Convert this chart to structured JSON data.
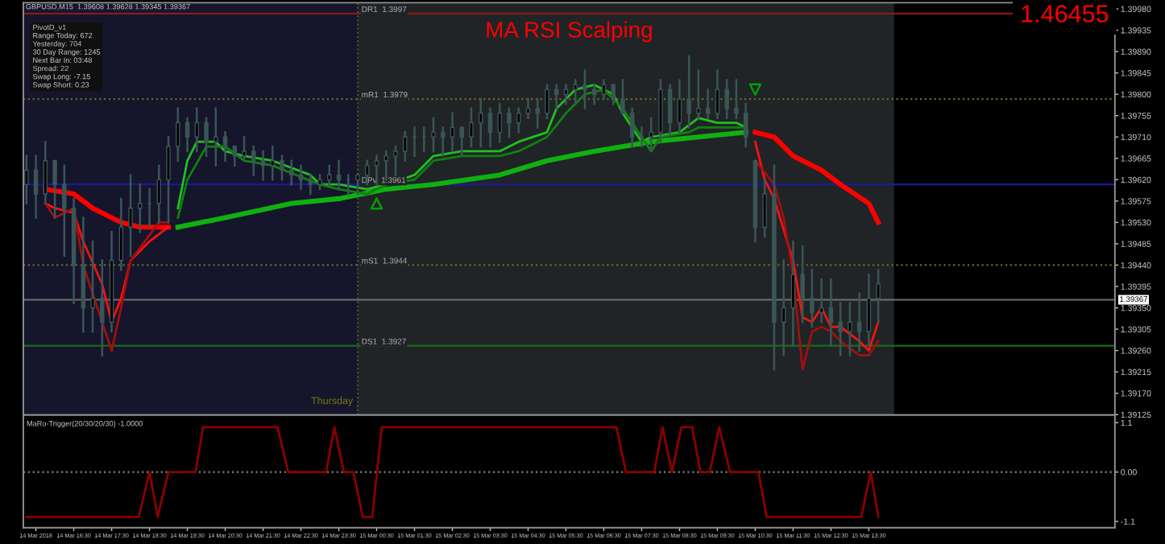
{
  "chart_data": [
    {
      "type": "candlestick",
      "title": "MA RSI Scalping",
      "annotations": [
        "1.46455",
        "GBPUSD,M15  1.39608 1.39628 1.39345 1.39367",
        "PivotD_v1\nRange Today: 672\nYesterday: 704\n30 Day Range: 1245\nNext Bar In: 03:48\nSpread: 22\nSwap Long: -7.15\nSwap Short: 0.23",
        "Thursday"
      ],
      "x": [
        "2018-03-14T15:15",
        "2018-03-14T15:30",
        "2018-03-14T15:45",
        "2018-03-14T16:00",
        "2018-03-14T16:15",
        "2018-03-14T16:30",
        "2018-03-14T16:45",
        "2018-03-14T17:00",
        "2018-03-14T17:15",
        "2018-03-14T17:30",
        "2018-03-14T17:45",
        "2018-03-14T18:00",
        "2018-03-14T18:15",
        "2018-03-14T18:30",
        "2018-03-14T18:45",
        "2018-03-14T19:00",
        "2018-03-14T19:15",
        "2018-03-14T19:30",
        "2018-03-14T19:45",
        "2018-03-14T20:00",
        "2018-03-14T20:15",
        "2018-03-14T20:30",
        "2018-03-14T20:45",
        "2018-03-14T21:00",
        "2018-03-14T21:15",
        "2018-03-14T21:30",
        "2018-03-14T21:45",
        "2018-03-14T22:00",
        "2018-03-14T22:15",
        "2018-03-14T22:30",
        "2018-03-14T22:45",
        "2018-03-14T23:00",
        "2018-03-14T23:15",
        "2018-03-14T23:30",
        "2018-03-14T23:45",
        "2018-03-15T00:00",
        "2018-03-15T00:15",
        "2018-03-15T00:30",
        "2018-03-15T00:45",
        "2018-03-15T01:00",
        "2018-03-15T01:15",
        "2018-03-15T01:30",
        "2018-03-15T01:45",
        "2018-03-15T02:00",
        "2018-03-15T02:15",
        "2018-03-15T02:30",
        "2018-03-15T02:45",
        "2018-03-15T03:00",
        "2018-03-15T03:15",
        "2018-03-15T03:30",
        "2018-03-15T03:45",
        "2018-03-15T04:00",
        "2018-03-15T04:15",
        "2018-03-15T04:30",
        "2018-03-15T04:45",
        "2018-03-15T05:00",
        "2018-03-15T05:15",
        "2018-03-15T05:30",
        "2018-03-15T05:45",
        "2018-03-15T06:00",
        "2018-03-15T06:15",
        "2018-03-15T06:30",
        "2018-03-15T06:45",
        "2018-03-15T07:00",
        "2018-03-15T07:15",
        "2018-03-15T07:30",
        "2018-03-15T07:45",
        "2018-03-15T08:00",
        "2018-03-15T08:15",
        "2018-03-15T08:30",
        "2018-03-15T08:45",
        "2018-03-15T09:00",
        "2018-03-15T09:15",
        "2018-03-15T09:30",
        "2018-03-15T09:45",
        "2018-03-15T10:00",
        "2018-03-15T10:15",
        "2018-03-15T10:30",
        "2018-03-15T10:45",
        "2018-03-15T11:00",
        "2018-03-15T11:15",
        "2018-03-15T11:30",
        "2018-03-15T11:45",
        "2018-03-15T12:00",
        "2018-03-15T12:15",
        "2018-03-15T12:30",
        "2018-03-15T12:45",
        "2018-03-15T13:00",
        "2018-03-15T13:15",
        "2018-03-15T13:30",
        "2018-03-15T13:45"
      ],
      "ohlc": [
        [
          1.3961,
          1.3967,
          1.3957,
          1.3964
        ],
        [
          1.3964,
          1.3967,
          1.3954,
          1.3959
        ],
        [
          1.3959,
          1.397,
          1.3957,
          1.3966
        ],
        [
          1.3966,
          1.3966,
          1.3954,
          1.3961
        ],
        [
          1.3961,
          1.3965,
          1.3946,
          1.3956
        ],
        [
          1.3956,
          1.3958,
          1.3936,
          1.3944
        ],
        [
          1.3944,
          1.3954,
          1.393,
          1.3935
        ],
        [
          1.3935,
          1.3949,
          1.393,
          1.3937
        ],
        [
          1.3937,
          1.3945,
          1.3925,
          1.3932
        ],
        [
          1.3932,
          1.3951,
          1.393,
          1.3945
        ],
        [
          1.3945,
          1.3958,
          1.3943,
          1.3952
        ],
        [
          1.3952,
          1.3963,
          1.3946,
          1.3956
        ],
        [
          1.3956,
          1.3961,
          1.3951,
          1.3957
        ],
        [
          1.3957,
          1.396,
          1.3952,
          1.3957
        ],
        [
          1.3957,
          1.3965,
          1.3953,
          1.3962
        ],
        [
          1.3962,
          1.3971,
          1.3953,
          1.3969
        ],
        [
          1.3969,
          1.3977,
          1.3966,
          1.3974
        ],
        [
          1.3974,
          1.3975,
          1.3968,
          1.3971
        ],
        [
          1.3971,
          1.3977,
          1.3968,
          1.3974
        ],
        [
          1.3974,
          1.3975,
          1.3967,
          1.397
        ],
        [
          1.397,
          1.3977,
          1.3965,
          1.3971
        ],
        [
          1.3971,
          1.3972,
          1.3966,
          1.3969
        ],
        [
          1.3969,
          1.3969,
          1.3965,
          1.3967
        ],
        [
          1.3967,
          1.3971,
          1.3966,
          1.3968
        ],
        [
          1.3968,
          1.3969,
          1.3963,
          1.3966
        ],
        [
          1.3966,
          1.3968,
          1.3962,
          1.3965
        ],
        [
          1.3965,
          1.3969,
          1.3962,
          1.3966
        ],
        [
          1.3966,
          1.3967,
          1.3962,
          1.3964
        ],
        [
          1.3964,
          1.3966,
          1.3961,
          1.3963
        ],
        [
          1.3963,
          1.3965,
          1.396,
          1.3962
        ],
        [
          1.3962,
          1.3963,
          1.3959,
          1.3961
        ],
        [
          1.3961,
          1.3963,
          1.396,
          1.3962
        ],
        [
          1.3962,
          1.3965,
          1.3961,
          1.3963
        ],
        [
          1.3963,
          1.3966,
          1.396,
          1.3962
        ],
        [
          1.3962,
          1.3963,
          1.3959,
          1.3962
        ],
        [
          1.3962,
          1.3963,
          1.3959,
          1.3963
        ],
        [
          1.3963,
          1.3966,
          1.3961,
          1.3965
        ],
        [
          1.3965,
          1.3967,
          1.3961,
          1.3966
        ],
        [
          1.3966,
          1.3968,
          1.3962,
          1.3967
        ],
        [
          1.3967,
          1.3969,
          1.3963,
          1.3968
        ],
        [
          1.3968,
          1.3972,
          1.3966,
          1.3971
        ],
        [
          1.3971,
          1.3973,
          1.3967,
          1.3971
        ],
        [
          1.3971,
          1.3973,
          1.3968,
          1.3971
        ],
        [
          1.3971,
          1.3975,
          1.3968,
          1.3972
        ],
        [
          1.3972,
          1.3973,
          1.3967,
          1.3971
        ],
        [
          1.3971,
          1.3976,
          1.3968,
          1.3973
        ],
        [
          1.3973,
          1.3973,
          1.3967,
          1.3971
        ],
        [
          1.3971,
          1.3977,
          1.3969,
          1.3974
        ],
        [
          1.3974,
          1.3979,
          1.3969,
          1.3976
        ],
        [
          1.3976,
          1.3977,
          1.3969,
          1.3972
        ],
        [
          1.3972,
          1.3978,
          1.397,
          1.3976
        ],
        [
          1.3976,
          1.3977,
          1.3971,
          1.3974
        ],
        [
          1.3974,
          1.3977,
          1.3972,
          1.3976
        ],
        [
          1.3976,
          1.3979,
          1.3975,
          1.3977
        ],
        [
          1.3977,
          1.3979,
          1.3973,
          1.3976
        ],
        [
          1.3976,
          1.3982,
          1.3975,
          1.3981
        ],
        [
          1.3981,
          1.3982,
          1.3977,
          1.398
        ],
        [
          1.398,
          1.3982,
          1.3978,
          1.3981
        ],
        [
          1.3981,
          1.3983,
          1.3978,
          1.3982
        ],
        [
          1.3982,
          1.3985,
          1.3977,
          1.3981
        ],
        [
          1.3981,
          1.3982,
          1.3978,
          1.398
        ],
        [
          1.398,
          1.3983,
          1.3979,
          1.3982
        ],
        [
          1.3982,
          1.3982,
          1.3978,
          1.3979
        ],
        [
          1.3979,
          1.3983,
          1.3976,
          1.3976
        ],
        [
          1.3976,
          1.3977,
          1.3969,
          1.3971
        ],
        [
          1.3971,
          1.3973,
          1.3969,
          1.3971
        ],
        [
          1.3971,
          1.3975,
          1.3968,
          1.3972
        ],
        [
          1.3972,
          1.3983,
          1.397,
          1.3981
        ],
        [
          1.3981,
          1.3982,
          1.3971,
          1.3974
        ],
        [
          1.3974,
          1.3983,
          1.3972,
          1.3979
        ],
        [
          1.3979,
          1.3988,
          1.3973,
          1.3976
        ],
        [
          1.3976,
          1.3985,
          1.3975,
          1.3977
        ],
        [
          1.3977,
          1.3981,
          1.3975,
          1.3976
        ],
        [
          1.3976,
          1.3985,
          1.3975,
          1.3981
        ],
        [
          1.3981,
          1.3983,
          1.3975,
          1.3977
        ],
        [
          1.3977,
          1.3983,
          1.3975,
          1.3976
        ],
        [
          1.3976,
          1.3978,
          1.3969,
          1.3971
        ],
        [
          1.3966,
          1.3966,
          1.3949,
          1.3952
        ],
        [
          1.3952,
          1.3962,
          1.395,
          1.3959
        ],
        [
          1.3959,
          1.3965,
          1.3922,
          1.3932
        ],
        [
          1.3932,
          1.3945,
          1.3925,
          1.3935
        ],
        [
          1.3935,
          1.3949,
          1.3927,
          1.3942
        ],
        [
          1.3942,
          1.3948,
          1.3932,
          1.3937
        ],
        [
          1.3937,
          1.3943,
          1.3931,
          1.3934
        ],
        [
          1.3934,
          1.3941,
          1.3932,
          1.3935
        ],
        [
          1.3935,
          1.3941,
          1.3927,
          1.3932
        ],
        [
          1.3932,
          1.3936,
          1.3925,
          1.393
        ],
        [
          1.393,
          1.3936,
          1.3925,
          1.3932
        ],
        [
          1.3932,
          1.3938,
          1.3926,
          1.393
        ],
        [
          1.393,
          1.3942,
          1.3927,
          1.3937
        ],
        [
          1.3937,
          1.3943,
          1.3932,
          1.394
        ]
      ],
      "color": "#3a5656",
      "series": [
        {
          "type": "line",
          "color": "#ff0000",
          "x": [
            "2018-03-14T15:45",
            "2018-03-14T16:30",
            "2018-03-14T17:00",
            "2018-03-14T17:45",
            "2018-03-14T18:15",
            "2018-03-14T19:00"
          ],
          "values": [
            1.396,
            1.3959,
            1.3956,
            1.3953,
            1.3952,
            1.3952
          ]
        },
        {
          "type": "line",
          "color": "#ff1010",
          "x": [
            "2018-03-14T15:45",
            "2018-03-14T16:00",
            "2018-03-14T16:30",
            "2018-03-14T16:45",
            "2018-03-14T17:15",
            "2018-03-14T17:30",
            "2018-03-14T17:45",
            "2018-03-14T18:00",
            "2018-03-14T18:30",
            "2018-03-14T19:00"
          ],
          "values": [
            1.3957,
            1.3956,
            1.3955,
            1.3949,
            1.394,
            1.3932,
            1.3937,
            1.3945,
            1.3949,
            1.3952
          ]
        },
        {
          "type": "line",
          "color": "#a01010",
          "x": [
            "2018-03-14T15:45",
            "2018-03-14T16:00",
            "2018-03-14T16:30",
            "2018-03-14T16:45",
            "2018-03-14T17:15",
            "2018-03-14T17:30",
            "2018-03-14T17:45",
            "2018-03-14T18:00",
            "2018-03-14T18:45",
            "2018-03-14T19:00"
          ],
          "values": [
            1.3957,
            1.3954,
            1.3956,
            1.3944,
            1.3932,
            1.3926,
            1.3935,
            1.3945,
            1.3953,
            1.3953
          ]
        },
        {
          "type": "line",
          "color": "#10b010",
          "x": [
            "2018-03-14T19:15",
            "2018-03-14T20:30",
            "2018-03-14T22:15",
            "2018-03-14T23:30",
            "2018-03-15T00:45",
            "2018-03-15T02:00",
            "2018-03-15T03:45",
            "2018-03-15T05:00",
            "2018-03-15T06:15",
            "2018-03-15T07:45",
            "2018-03-15T09:00",
            "2018-03-15T10:15"
          ],
          "values": [
            1.3952,
            1.3954,
            1.3957,
            1.3958,
            1.396,
            1.3961,
            1.3963,
            1.3966,
            1.3968,
            1.397,
            1.3971,
            1.3972
          ]
        },
        {
          "type": "line",
          "color": "#20c020",
          "x": [
            "2018-03-14T19:15",
            "2018-03-14T19:30",
            "2018-03-14T19:45",
            "2018-03-14T20:15",
            "2018-03-14T20:30",
            "2018-03-14T21:00",
            "2018-03-14T21:45",
            "2018-03-14T22:45",
            "2018-03-14T23:00",
            "2018-03-14T23:30",
            "2018-03-15T00:15",
            "2018-03-15T00:45",
            "2018-03-15T01:30",
            "2018-03-15T02:00",
            "2018-03-15T02:45",
            "2018-03-15T03:45",
            "2018-03-15T04:15",
            "2018-03-15T05:00",
            "2018-03-15T05:15",
            "2018-03-15T05:45",
            "2018-03-15T06:15",
            "2018-03-15T06:45",
            "2018-03-15T07:00",
            "2018-03-15T07:30",
            "2018-03-15T07:45",
            "2018-03-15T08:30",
            "2018-03-15T09:00",
            "2018-03-15T09:30",
            "2018-03-15T10:00",
            "2018-03-15T10:15"
          ],
          "values": [
            1.3956,
            1.3966,
            1.397,
            1.397,
            1.3968,
            1.3967,
            1.3966,
            1.3963,
            1.3961,
            1.3961,
            1.396,
            1.3961,
            1.3963,
            1.3967,
            1.3968,
            1.3968,
            1.397,
            1.3972,
            1.3977,
            1.3981,
            1.3982,
            1.398,
            1.3976,
            1.397,
            1.3971,
            1.3972,
            1.3975,
            1.3974,
            1.3974,
            1.3973
          ]
        },
        {
          "type": "line",
          "color": "#108010",
          "x": [
            "2018-03-14T19:15",
            "2018-03-14T19:30",
            "2018-03-14T20:00",
            "2018-03-14T20:30",
            "2018-03-14T21:00",
            "2018-03-14T21:45",
            "2018-03-14T23:00",
            "2018-03-14T23:30",
            "2018-03-15T00:15",
            "2018-03-15T00:45",
            "2018-03-15T01:30",
            "2018-03-15T02:00",
            "2018-03-15T02:45",
            "2018-03-15T03:45",
            "2018-03-15T04:15",
            "2018-03-15T05:00",
            "2018-03-15T05:30",
            "2018-03-15T06:00",
            "2018-03-15T06:30",
            "2018-03-15T07:00",
            "2018-03-15T07:45",
            "2018-03-15T08:00",
            "2018-03-15T08:45",
            "2018-03-15T09:00",
            "2018-03-15T09:45",
            "2018-03-15T10:15"
          ],
          "values": [
            1.3954,
            1.3962,
            1.3969,
            1.3969,
            1.3966,
            1.3965,
            1.3961,
            1.396,
            1.3959,
            1.3961,
            1.3962,
            1.3966,
            1.3967,
            1.3967,
            1.3968,
            1.3971,
            1.3976,
            1.398,
            1.3981,
            1.3977,
            1.3968,
            1.3971,
            1.3972,
            1.3973,
            1.3973,
            1.3973
          ]
        },
        {
          "type": "line",
          "color": "#ff0000",
          "x": [
            "2018-03-15T10:30",
            "2018-03-15T11:00",
            "2018-03-15T11:30",
            "2018-03-15T12:15",
            "2018-03-15T12:45",
            "2018-03-15T13:30",
            "2018-03-15T13:45"
          ],
          "values": [
            1.3972,
            1.3971,
            1.3967,
            1.3964,
            1.3961,
            1.3957,
            1.3953
          ]
        },
        {
          "type": "line",
          "color": "#ff1010",
          "x": [
            "2018-03-15T10:30",
            "2018-03-15T10:45",
            "2018-03-15T11:00",
            "2018-03-15T11:30",
            "2018-03-15T11:45",
            "2018-03-15T12:00",
            "2018-03-15T12:15",
            "2018-03-15T12:30",
            "2018-03-15T12:45",
            "2018-03-15T13:15",
            "2018-03-15T13:30",
            "2018-03-15T13:45"
          ],
          "values": [
            1.397,
            1.3962,
            1.3958,
            1.3945,
            1.3933,
            1.3932,
            1.3935,
            1.3931,
            1.3931,
            1.3928,
            1.3926,
            1.3932
          ]
        },
        {
          "type": "line",
          "color": "#a01010",
          "x": [
            "2018-03-15T10:30",
            "2018-03-15T11:00",
            "2018-03-15T11:15",
            "2018-03-15T11:30",
            "2018-03-15T11:45",
            "2018-03-15T12:00",
            "2018-03-15T12:15",
            "2018-03-15T12:30",
            "2018-03-15T12:45",
            "2018-03-15T13:15",
            "2018-03-15T13:30",
            "2018-03-15T13:45"
          ],
          "values": [
            1.3966,
            1.3961,
            1.3954,
            1.3942,
            1.3922,
            1.393,
            1.3931,
            1.393,
            1.3928,
            1.3925,
            1.3925,
            1.3928
          ]
        },
        {
          "type": "scatter",
          "marker": "triangle",
          "color": "#00a000",
          "x": [
            "2018-03-15T00:30"
          ],
          "values": [
            1.3957
          ]
        },
        {
          "type": "scatter",
          "marker": "triangle_down",
          "color": "#00a000",
          "x": [
            "2018-03-15T10:30"
          ],
          "values": [
            1.3981
          ]
        }
      ],
      "ref_lines": [
        {
          "axis": "y",
          "value": 1.3997,
          "label": "DR1  1.3997",
          "color": "#8b1a1a",
          "line_style": "solid"
        },
        {
          "axis": "y",
          "value": 1.3979,
          "label": "mR1  1.3979",
          "color": "#6b6b20",
          "line_style": "dotted"
        },
        {
          "axis": "y",
          "value": 1.3961,
          "label": "DPv  1.3961",
          "color": "#1a1a9a",
          "line_style": "solid"
        },
        {
          "axis": "y",
          "value": 1.3944,
          "label": "mS1  1.3944",
          "color": "#6b6b20",
          "line_style": "dotted"
        },
        {
          "axis": "y",
          "value": 1.3927,
          "label": "DS1  1.3927",
          "color": "#1a6b1a",
          "line_style": "solid"
        },
        {
          "axis": "y",
          "value": 1.39367,
          "label": "1.39367",
          "color": "#707070",
          "line_style": "solid"
        },
        {
          "axis": "x",
          "value": "2018-03-15T00:00",
          "color": "#5a5a20",
          "line_style": "dotted"
        }
      ],
      "bands": [
        {
          "axis": "x",
          "from": "2018-03-14T15:10",
          "to": "2018-03-15T00:00",
          "color": "#15152c"
        },
        {
          "axis": "x",
          "from": "2018-03-15T00:00",
          "to": "2018-03-15T14:10",
          "color": "#202426"
        }
      ],
      "xlim": [
        "2018-03-14T15:10",
        "2018-03-15T20:00"
      ],
      "ylim": [
        1.39124,
        1.39993
      ],
      "yticks": [
        {
          "value": 1.3998,
          "label": "1.39980"
        },
        1.39935,
        {
          "value": 1.3989,
          "label": "1.39890"
        },
        1.39845,
        {
          "value": 1.398,
          "label": "1.39800"
        },
        1.39755,
        {
          "value": 1.3971,
          "label": "1.39710"
        },
        1.39665,
        {
          "value": 1.3962,
          "label": "1.39620"
        },
        1.39575,
        {
          "value": 1.3953,
          "label": "1.39530"
        },
        1.39485,
        {
          "value": 1.3944,
          "label": "1.39440"
        },
        1.39395,
        {
          "value": 1.3935,
          "label": "1.39350"
        },
        1.39305,
        {
          "value": 1.3926,
          "label": "1.39260"
        },
        1.39215,
        {
          "value": 1.3917,
          "label": "1.39170"
        },
        1.39125
      ],
      "tick_labels": "y",
      "grid": false,
      "legend": false
    },
    {
      "type": "line",
      "title": "MaRo-Trigger(20/30/20/30) -1.0000",
      "series": [
        {
          "color": "#8b0000",
          "x": [
            "2018-03-14T15:15",
            "2018-03-14T18:13",
            "2018-03-14T18:30",
            "2018-03-14T18:43",
            "2018-03-14T19:00",
            "2018-03-14T19:43",
            "2018-03-14T19:55",
            "2018-03-14T21:53",
            "2018-03-14T22:10",
            "2018-03-14T23:10",
            "2018-03-14T23:23",
            "2018-03-14T23:38",
            "2018-03-14T23:53",
            "2018-03-15T00:08",
            "2018-03-15T00:23",
            "2018-03-15T00:38",
            "2018-03-15T06:50",
            "2018-03-15T07:05",
            "2018-03-15T07:50",
            "2018-03-15T08:03",
            "2018-03-15T08:18",
            "2018-03-15T08:33",
            "2018-03-15T08:50",
            "2018-03-15T09:03",
            "2018-03-15T09:18",
            "2018-03-15T09:33",
            "2018-03-15T09:50",
            "2018-03-15T10:35",
            "2018-03-15T10:48",
            "2018-03-15T13:18",
            "2018-03-15T13:33",
            "2018-03-15T13:45"
          ],
          "values": [
            -1,
            -1,
            0,
            -1,
            0,
            0,
            1,
            1,
            0,
            0,
            1,
            0,
            0,
            -1,
            -1,
            1,
            1,
            0,
            0,
            1,
            0,
            1,
            1,
            0,
            0,
            1,
            0,
            0,
            -1,
            -1,
            0,
            -1
          ]
        }
      ],
      "ref_lines": [
        {
          "axis": "y",
          "value": 0,
          "color": "#808080",
          "line_style": "dotted"
        }
      ],
      "xlim": [
        "2018-03-14T15:10",
        "2018-03-15T20:00"
      ],
      "ylim": [
        -1.24,
        1.27
      ],
      "xticks": [
        {
          "value": "2018-03-14T15:30",
          "label": "14 Mar 2018"
        },
        {
          "value": "2018-03-14T16:30",
          "label": "14 Mar 16:30"
        },
        {
          "value": "2018-03-14T17:30",
          "label": "14 Mar 17:30"
        },
        {
          "value": "2018-03-14T18:30",
          "label": "14 Mar 18:30"
        },
        {
          "value": "2018-03-14T19:30",
          "label": "14 Mar 19:30"
        },
        {
          "value": "2018-03-14T20:30",
          "label": "14 Mar 20:30"
        },
        {
          "value": "2018-03-14T21:30",
          "label": "14 Mar 21:30"
        },
        {
          "value": "2018-03-14T22:30",
          "label": "14 Mar 22:30"
        },
        {
          "value": "2018-03-14T23:30",
          "label": "14 Mar 23:30"
        },
        {
          "value": "2018-03-15T00:30",
          "label": "15 Mar 00:30"
        },
        {
          "value": "2018-03-15T01:30",
          "label": "15 Mar 01:30"
        },
        {
          "value": "2018-03-15T02:30",
          "label": "15 Mar 02:30"
        },
        {
          "value": "2018-03-15T03:30",
          "label": "15 Mar 03:30"
        },
        {
          "value": "2018-03-15T04:30",
          "label": "15 Mar 04:30"
        },
        {
          "value": "2018-03-15T05:30",
          "label": "15 Mar 05:30"
        },
        {
          "value": "2018-03-15T06:30",
          "label": "15 Mar 06:30"
        },
        {
          "value": "2018-03-15T07:30",
          "label": "15 Mar 07:30"
        },
        {
          "value": "2018-03-15T08:30",
          "label": "15 Mar 08:30"
        },
        {
          "value": "2018-03-15T09:30",
          "label": "15 Mar 09:30"
        },
        {
          "value": "2018-03-15T10:30",
          "label": "15 Mar 10:30"
        },
        {
          "value": "2018-03-15T11:30",
          "label": "15 Mar 11:30"
        },
        {
          "value": "2018-03-15T12:30",
          "label": "15 Mar 12:30"
        },
        {
          "value": "2018-03-15T13:30",
          "label": "15 Mar 13:30"
        }
      ],
      "yticks": [
        1.1,
        {
          "value": 0,
          "label": "0.00"
        },
        -1.1
      ],
      "grid": false,
      "legend": false
    }
  ]
}
